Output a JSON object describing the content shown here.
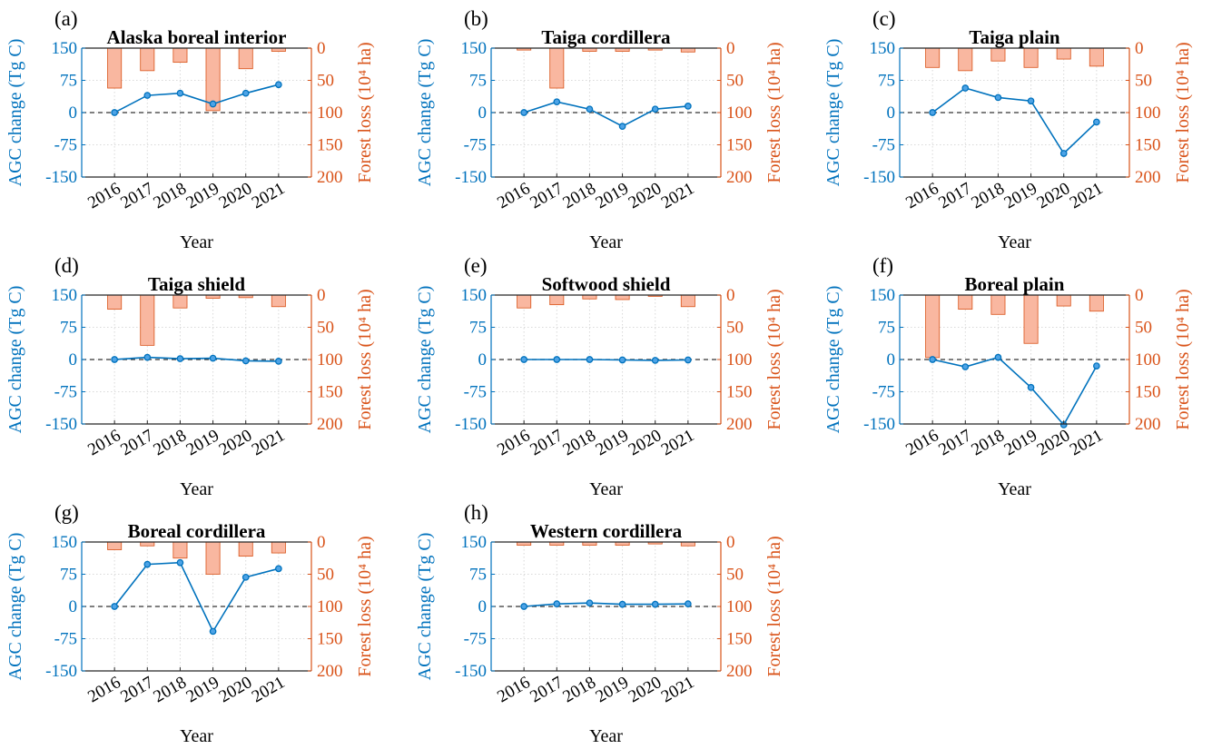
{
  "colors": {
    "agc": "#0072BD",
    "forest_axis": "#D95319",
    "bar_fill": "#F9B7A0",
    "bar_edge": "#D95319",
    "grid": "#D9D9D9",
    "zero_line": "#333333",
    "text": "#000000"
  },
  "chart_data": [
    {
      "panel": "(a)",
      "type": "line+bar",
      "title": "Alaska boreal interior",
      "xlabel": "Year",
      "ylabel_left": "AGC change (Tg C)",
      "ylabel_right": "Forest loss (10⁴ ha)",
      "categories": [
        "2016",
        "2017",
        "2018",
        "2019",
        "2020",
        "2021"
      ],
      "ylim_left": [
        -150,
        150
      ],
      "yticks_left": [
        "150",
        "75",
        "0",
        "-75",
        "-150"
      ],
      "ylim_right": [
        0,
        200
      ],
      "right_axis_reversed": true,
      "yticks_right": [
        "0",
        "50",
        "100",
        "150",
        "200"
      ],
      "grid": true,
      "series": [
        {
          "axis": "left",
          "kind": "line",
          "values": [
            0,
            40,
            45,
            20,
            45,
            65
          ]
        },
        {
          "axis": "right",
          "kind": "bar",
          "values": [
            62,
            35,
            22,
            97,
            32,
            5
          ]
        }
      ]
    },
    {
      "panel": "(b)",
      "type": "line+bar",
      "title": "Taiga cordillera",
      "xlabel": "Year",
      "ylabel_left": "AGC change (Tg C)",
      "ylabel_right": "Forest loss (10⁴ ha)",
      "categories": [
        "2016",
        "2017",
        "2018",
        "2019",
        "2020",
        "2021"
      ],
      "ylim_left": [
        -150,
        150
      ],
      "yticks_left": [
        "150",
        "75",
        "0",
        "-75",
        "-150"
      ],
      "ylim_right": [
        0,
        200
      ],
      "right_axis_reversed": true,
      "yticks_right": [
        "0",
        "50",
        "100",
        "150",
        "200"
      ],
      "grid": true,
      "series": [
        {
          "axis": "left",
          "kind": "line",
          "values": [
            0,
            25,
            8,
            -32,
            8,
            15
          ]
        },
        {
          "axis": "right",
          "kind": "bar",
          "values": [
            3,
            62,
            5,
            5,
            3,
            6
          ]
        }
      ]
    },
    {
      "panel": "(c)",
      "type": "line+bar",
      "title": "Taiga plain",
      "xlabel": "Year",
      "ylabel_left": "AGC change (Tg C)",
      "ylabel_right": "Forest loss (10⁴ ha)",
      "categories": [
        "2016",
        "2017",
        "2018",
        "2019",
        "2020",
        "2021"
      ],
      "ylim_left": [
        -150,
        150
      ],
      "yticks_left": [
        "150",
        "75",
        "0",
        "-75",
        "-150"
      ],
      "ylim_right": [
        0,
        200
      ],
      "right_axis_reversed": true,
      "yticks_right": [
        "0",
        "50",
        "100",
        "150",
        "200"
      ],
      "grid": true,
      "series": [
        {
          "axis": "left",
          "kind": "line",
          "values": [
            0,
            57,
            35,
            27,
            -95,
            -22
          ]
        },
        {
          "axis": "right",
          "kind": "bar",
          "values": [
            30,
            35,
            20,
            30,
            17,
            28
          ]
        }
      ]
    },
    {
      "panel": "(d)",
      "type": "line+bar",
      "title": "Taiga shield",
      "xlabel": "Year",
      "ylabel_left": "AGC change (Tg C)",
      "ylabel_right": "Forest loss (10⁴ ha)",
      "categories": [
        "2016",
        "2017",
        "2018",
        "2019",
        "2020",
        "2021"
      ],
      "ylim_left": [
        -150,
        150
      ],
      "yticks_left": [
        "150",
        "75",
        "0",
        "-75",
        "-150"
      ],
      "ylim_right": [
        0,
        200
      ],
      "right_axis_reversed": true,
      "yticks_right": [
        "0",
        "50",
        "100",
        "150",
        "200"
      ],
      "grid": true,
      "series": [
        {
          "axis": "left",
          "kind": "line",
          "values": [
            0,
            5,
            2,
            3,
            -3,
            -4
          ]
        },
        {
          "axis": "right",
          "kind": "bar",
          "values": [
            22,
            78,
            20,
            5,
            4,
            18
          ]
        }
      ]
    },
    {
      "panel": "(e)",
      "type": "line+bar",
      "title": "Softwood shield",
      "xlabel": "Year",
      "ylabel_left": "AGC change (Tg C)",
      "ylabel_right": "Forest loss (10⁴ ha)",
      "categories": [
        "2016",
        "2017",
        "2018",
        "2019",
        "2020",
        "2021"
      ],
      "ylim_left": [
        -150,
        150
      ],
      "yticks_left": [
        "150",
        "75",
        "0",
        "-75",
        "-150"
      ],
      "ylim_right": [
        0,
        200
      ],
      "right_axis_reversed": true,
      "yticks_right": [
        "0",
        "50",
        "100",
        "150",
        "200"
      ],
      "grid": true,
      "series": [
        {
          "axis": "left",
          "kind": "line",
          "values": [
            0,
            0,
            0,
            -1,
            -2,
            -1
          ]
        },
        {
          "axis": "right",
          "kind": "bar",
          "values": [
            20,
            15,
            6,
            7,
            2,
            18
          ]
        }
      ]
    },
    {
      "panel": "(f)",
      "type": "line+bar",
      "title": "Boreal plain",
      "xlabel": "Year",
      "ylabel_left": "AGC change (Tg C)",
      "ylabel_right": "Forest loss (10⁴ ha)",
      "categories": [
        "2016",
        "2017",
        "2018",
        "2019",
        "2020",
        "2021"
      ],
      "ylim_left": [
        -150,
        150
      ],
      "yticks_left": [
        "150",
        "75",
        "0",
        "-75",
        "-150"
      ],
      "ylim_right": [
        0,
        200
      ],
      "right_axis_reversed": true,
      "yticks_right": [
        "0",
        "50",
        "100",
        "150",
        "200"
      ],
      "grid": true,
      "series": [
        {
          "axis": "left",
          "kind": "line",
          "values": [
            0,
            -17,
            5,
            -65,
            -152,
            -15
          ]
        },
        {
          "axis": "right",
          "kind": "bar",
          "values": [
            97,
            22,
            30,
            75,
            17,
            25
          ]
        }
      ]
    },
    {
      "panel": "(g)",
      "type": "line+bar",
      "title": "Boreal cordillera",
      "xlabel": "Year",
      "ylabel_left": "AGC change (Tg C)",
      "ylabel_right": "Forest loss (10⁴ ha)",
      "categories": [
        "2016",
        "2017",
        "2018",
        "2019",
        "2020",
        "2021"
      ],
      "ylim_left": [
        -150,
        150
      ],
      "yticks_left": [
        "150",
        "75",
        "0",
        "-75",
        "-150"
      ],
      "ylim_right": [
        0,
        200
      ],
      "right_axis_reversed": true,
      "yticks_right": [
        "0",
        "50",
        "100",
        "150",
        "200"
      ],
      "grid": true,
      "series": [
        {
          "axis": "left",
          "kind": "line",
          "values": [
            0,
            98,
            102,
            -58,
            68,
            88
          ]
        },
        {
          "axis": "right",
          "kind": "bar",
          "values": [
            12,
            6,
            25,
            50,
            22,
            17
          ]
        }
      ]
    },
    {
      "panel": "(h)",
      "type": "line+bar",
      "title": "Western cordillera",
      "xlabel": "Year",
      "ylabel_left": "AGC change (Tg C)",
      "ylabel_right": "Forest loss (10⁴ ha)",
      "categories": [
        "2016",
        "2017",
        "2018",
        "2019",
        "2020",
        "2021"
      ],
      "ylim_left": [
        -150,
        150
      ],
      "yticks_left": [
        "150",
        "75",
        "0",
        "-75",
        "-150"
      ],
      "ylim_right": [
        0,
        200
      ],
      "right_axis_reversed": true,
      "yticks_right": [
        "0",
        "50",
        "100",
        "150",
        "200"
      ],
      "grid": true,
      "series": [
        {
          "axis": "left",
          "kind": "line",
          "values": [
            0,
            6,
            8,
            5,
            5,
            6
          ]
        },
        {
          "axis": "right",
          "kind": "bar",
          "values": [
            5,
            5,
            5,
            5,
            3,
            6
          ]
        }
      ]
    }
  ]
}
